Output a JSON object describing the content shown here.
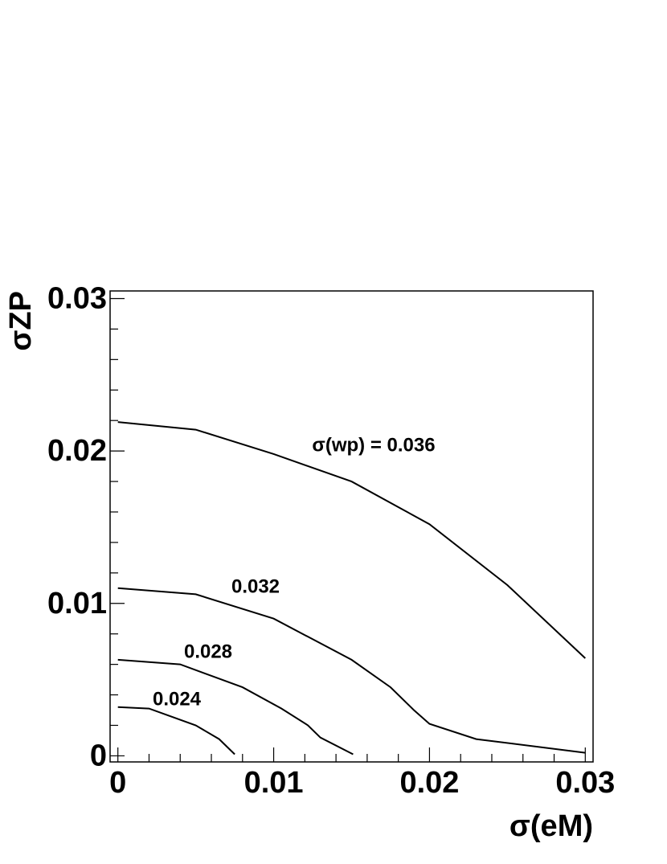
{
  "chart_data": {
    "type": "line",
    "x_label": "σ(eM)",
    "y_label": "σZP",
    "xlim": [
      -0.0005,
      0.0305
    ],
    "ylim": [
      -0.0004,
      0.0305
    ],
    "xticks": [
      0,
      0.01,
      0.02,
      0.03
    ],
    "yticks": [
      0,
      0.01,
      0.02,
      0.03
    ],
    "color": "#000000",
    "series": [
      {
        "name": "σ(wp) = 0.036",
        "x": [
          0,
          0.005,
          0.01,
          0.015,
          0.02,
          0.025,
          0.03
        ],
        "values": [
          0.0219,
          0.0214,
          0.0198,
          0.018,
          0.0152,
          0.0112,
          0.0064
        ]
      },
      {
        "name": "0.032",
        "x": [
          0,
          0.005,
          0.01,
          0.015,
          0.0175,
          0.019,
          0.02,
          0.023,
          0.03
        ],
        "values": [
          0.011,
          0.0106,
          0.009,
          0.0063,
          0.0045,
          0.003,
          0.0021,
          0.0011,
          0.0002
        ]
      },
      {
        "name": "0.028",
        "x": [
          0,
          0.004,
          0.008,
          0.0105,
          0.0122,
          0.013,
          0.0151
        ],
        "values": [
          0.0063,
          0.006,
          0.0045,
          0.0031,
          0.002,
          0.0012,
          0.0001
        ]
      },
      {
        "name": "0.024",
        "x": [
          0,
          0.002,
          0.005,
          0.0065,
          0.0075
        ],
        "values": [
          0.0032,
          0.0031,
          0.002,
          0.0011,
          0.0001
        ]
      }
    ]
  }
}
